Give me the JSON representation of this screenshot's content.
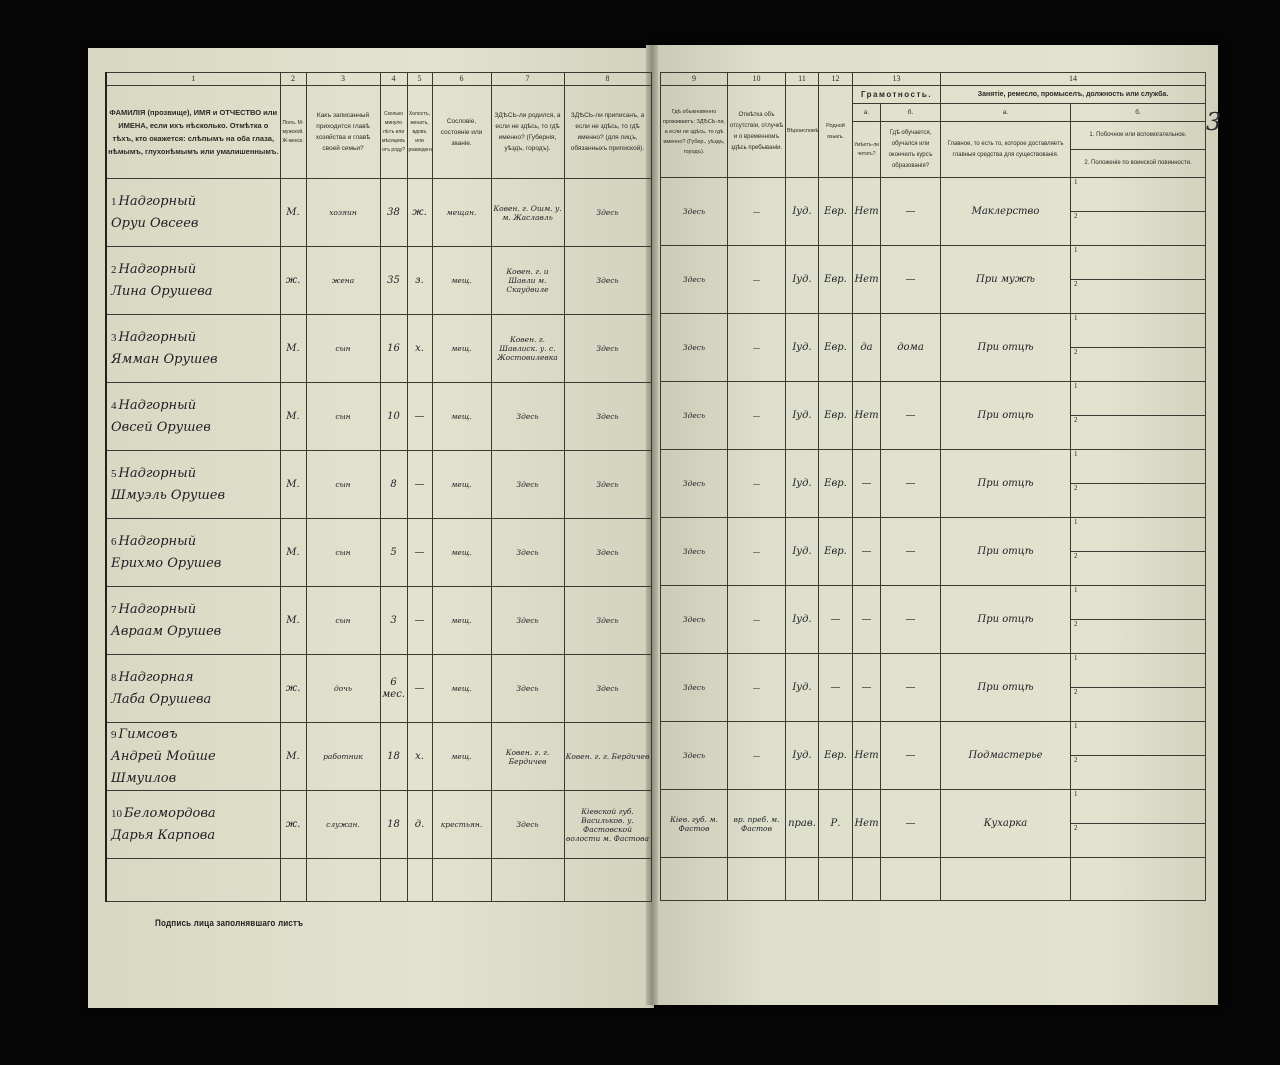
{
  "header_left": {
    "col_numbers": [
      "1",
      "2",
      "3",
      "4",
      "5",
      "6",
      "7",
      "8"
    ],
    "col1": "ФАМИЛІЯ (прозвище), ИМЯ и ОТЧЕСТВО или ИМЕНА, если ихъ нѣсколько. Отмѣтка о тѣхъ, кто окажется: слѣпымъ на оба глаза, нѣмымъ, глухонѣмымъ или умалишеннымъ.",
    "col2": "Полъ. М-мужской. Ж-женск.",
    "col3": "Какъ записанный приходится главѣ хозяйства и главѣ своей семьи?",
    "col4": "Сколько минуло лѣтъ или мѣсяцевъ отъ роду?",
    "col5": "Холостъ, женатъ, вдовъ или разведенъ.",
    "col6": "Сословіе, состояніе или званіе.",
    "col7": "ЗДѢСЬ-ли родился, а если не здѣсь, то гдѣ именно? (Губернія, уѣздъ, городъ).",
    "col8": "ЗДѢСЬ-ли приписанъ, а если не здѣсь, то гдѣ именно? (для лицъ, обязанныхъ припиской)."
  },
  "header_right": {
    "col_numbers": [
      "9",
      "10",
      "11",
      "12",
      "13",
      "14"
    ],
    "col9": "Гдѣ обыкновенно проживаетъ: ЗДѢСЬ-ли, а если не здѣсь, то гдѣ именно? (Губер., уѣздъ, городъ).",
    "col10": "Отмѣтка объ отсутствіи, отлучкѣ и о временномъ здѣсь пребываніи.",
    "col11": "Вѣроисповѣданіе.",
    "col12": "Родной языкъ.",
    "col13_title": "Грамотность.",
    "col13a_letter": "а.",
    "col13b_letter": "б.",
    "col13a": "Умѣетъ-ли читать?",
    "col13b": "Гдѣ обучается, обучался или окончилъ курсъ образованія?",
    "col14_title": "Занятіе, ремесло, промыселъ, должность или служба.",
    "col14a_letter": "а.",
    "col14b_letter": "б.",
    "col14a": "Главное, то есть то, которое доставляетъ главныя средства для существованія.",
    "col14b_1": "1. Побочное или вспомогательное.",
    "col14b_2": "2. Положеніе по воинской повинности."
  },
  "rows": [
    {
      "n": "1",
      "surname": "Надгорный",
      "given": "Оруи Овсеев",
      "sex": "М.",
      "relation": "хозяин",
      "age": "38",
      "marital": "ж.",
      "estate": "мещан.",
      "born": "Ковен. г. Ошм. у. м. Жаславль",
      "registered": "Здесь",
      "resides": "Здесь",
      "absence": "—",
      "religion": "Іуд.",
      "language": "Евр.",
      "literate": "Нет",
      "education": "—",
      "occupation": "Маклерство"
    },
    {
      "n": "2",
      "surname": "Надгорный",
      "given": "Лина Орушева",
      "sex": "ж.",
      "relation": "жена",
      "age": "35",
      "marital": "з.",
      "estate": "мещ.",
      "born": "Ковен. г. и Шавли м. Скаудвиле",
      "registered": "Здесь",
      "resides": "Здесь",
      "absence": "—",
      "religion": "Іуд.",
      "language": "Евр.",
      "literate": "Нет",
      "education": "—",
      "occupation": "При мужѣ"
    },
    {
      "n": "3",
      "surname": "Надгорный",
      "given": "Ямман Орушев",
      "sex": "М.",
      "relation": "сын",
      "age": "16",
      "marital": "х.",
      "estate": "мещ.",
      "born": "Ковен. г. Шавлиск. у. с. Жостовилевка",
      "registered": "Здесь",
      "resides": "Здесь",
      "absence": "—",
      "religion": "Іуд.",
      "language": "Евр.",
      "literate": "да",
      "education": "дома",
      "occupation": "При отцѣ"
    },
    {
      "n": "4",
      "surname": "Надгорный",
      "given": "Овсей Орушев",
      "sex": "М.",
      "relation": "сын",
      "age": "10",
      "marital": "—",
      "estate": "мещ.",
      "born": "Здесь",
      "registered": "Здесь",
      "resides": "Здесь",
      "absence": "—",
      "religion": "Іуд.",
      "language": "Евр.",
      "literate": "Нет",
      "education": "—",
      "occupation": "При отцѣ"
    },
    {
      "n": "5",
      "surname": "Надгорный",
      "given": "Шмуэль Орушев",
      "sex": "М.",
      "relation": "сын",
      "age": "8",
      "marital": "—",
      "estate": "мещ.",
      "born": "Здесь",
      "registered": "Здесь",
      "resides": "Здесь",
      "absence": "—",
      "religion": "Іуд.",
      "language": "Евр.",
      "literate": "—",
      "education": "—",
      "occupation": "При отцѣ"
    },
    {
      "n": "6",
      "surname": "Надгорный",
      "given": "Ерихмо Орушев",
      "sex": "М.",
      "relation": "сын",
      "age": "5",
      "marital": "—",
      "estate": "мещ.",
      "born": "Здесь",
      "registered": "Здесь",
      "resides": "Здесь",
      "absence": "—",
      "religion": "Іуд.",
      "language": "Евр.",
      "literate": "—",
      "education": "—",
      "occupation": "При отцѣ"
    },
    {
      "n": "7",
      "surname": "Надгорный",
      "given": "Авраам Орушев",
      "sex": "М.",
      "relation": "сын",
      "age": "3",
      "marital": "—",
      "estate": "мещ.",
      "born": "Здесь",
      "registered": "Здесь",
      "resides": "Здесь",
      "absence": "—",
      "religion": "Іуд.",
      "language": "—",
      "literate": "—",
      "education": "—",
      "occupation": "При отцѣ"
    },
    {
      "n": "8",
      "surname": "Надгорная",
      "given": "Лаба Орушева",
      "sex": "ж.",
      "relation": "дочь",
      "age": "6 мес.",
      "marital": "—",
      "estate": "мещ.",
      "born": "Здесь",
      "registered": "Здесь",
      "resides": "Здесь",
      "absence": "—",
      "religion": "Іуд.",
      "language": "—",
      "literate": "—",
      "education": "—",
      "occupation": "При отцѣ"
    },
    {
      "n": "9",
      "surname": "Гимсовъ",
      "given": "Андрей Мойше Шмуилов",
      "sex": "М.",
      "relation": "работник",
      "age": "18",
      "marital": "х.",
      "estate": "мещ.",
      "born": "Ковен. г. г. Бердичев",
      "registered": "Ковен. г. г. Бердичев",
      "resides": "Здесь",
      "absence": "—",
      "religion": "Іуд.",
      "language": "Евр.",
      "literate": "Нет",
      "education": "—",
      "occupation": "Подмастерье"
    },
    {
      "n": "10",
      "surname": "Беломордова",
      "given": "Дарья Карпова",
      "sex": "ж.",
      "relation": "служан.",
      "age": "18",
      "marital": "д.",
      "estate": "крестьян.",
      "born": "Здесь",
      "registered": "Кіевской губ. Васильков. у. Фастовской волости м. Фастова",
      "resides": "Кіев. губ. м. Фастов",
      "absence": "вр. преб. м. Фастов",
      "religion": "прав.",
      "language": "Р.",
      "literate": "Нет",
      "education": "—",
      "occupation": "Кухарка"
    }
  ],
  "footer": {
    "signature_label": "Подпись лица заполнявшаго листъ"
  },
  "margin_note": "3"
}
